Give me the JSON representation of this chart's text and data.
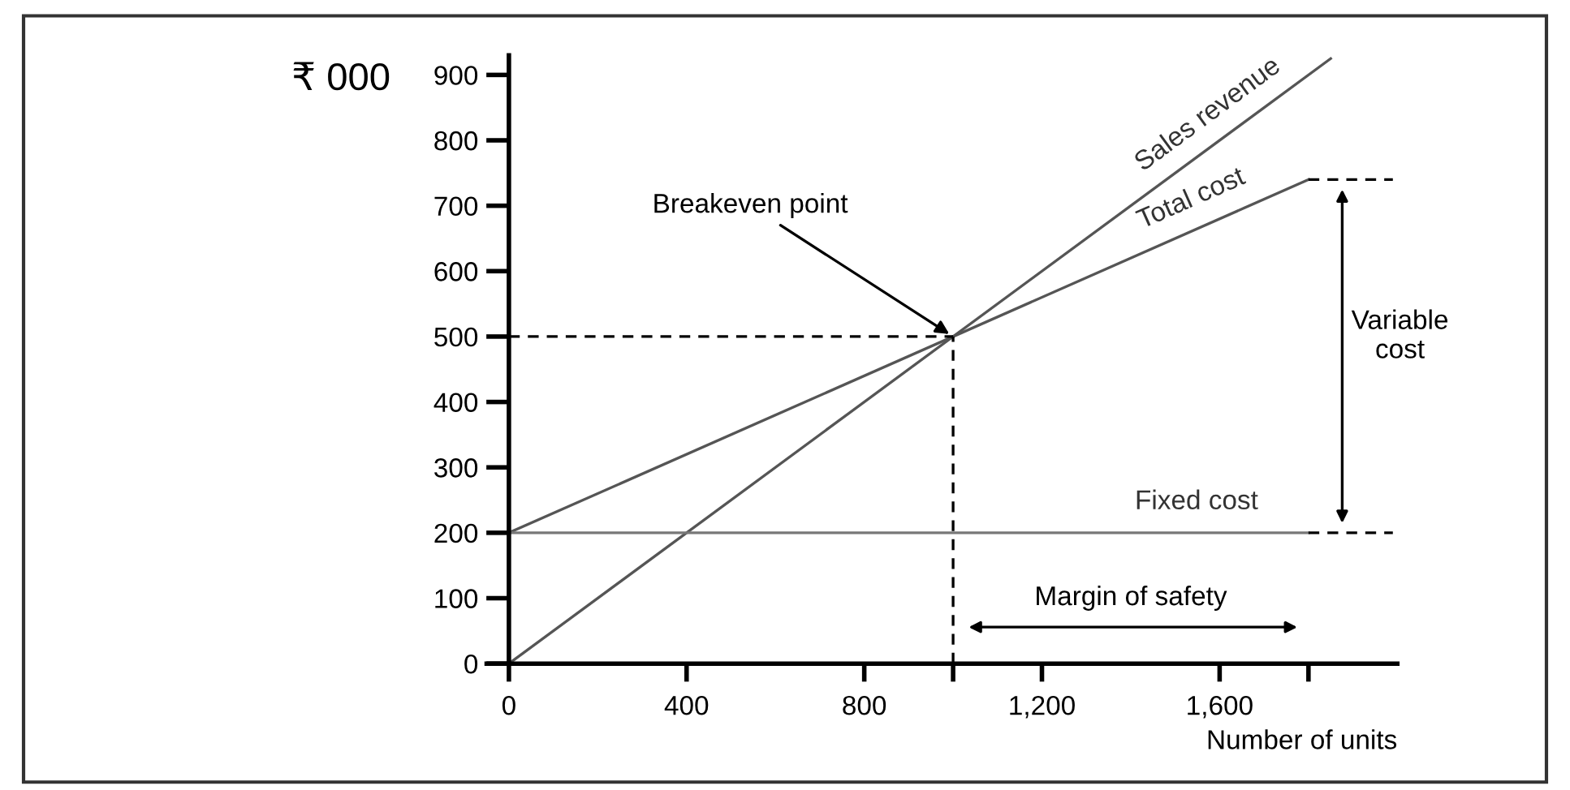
{
  "chart_data": {
    "type": "line",
    "ylabel": "₹ 000",
    "xlabel": "Number of units",
    "xlim": [
      -50,
      2000
    ],
    "ylim": [
      0,
      930
    ],
    "xticks": [
      0,
      400,
      800,
      {
        "value": 1000,
        "label": null
      },
      {
        "value": 1200,
        "label": "1,200"
      },
      {
        "value": 1600,
        "label": "1,600"
      },
      {
        "value": 1800,
        "label": null
      }
    ],
    "yticks": [
      0,
      100,
      200,
      300,
      400,
      500,
      600,
      700,
      800,
      900
    ],
    "grid": false,
    "legend": false,
    "marker": "none",
    "series": [
      {
        "name": "Sales revenue",
        "color": "#555555",
        "x": [
          0,
          1850
        ],
        "values": [
          0,
          925
        ],
        "line_style": "solid"
      },
      {
        "name": "Total cost",
        "color": "#555555",
        "x": [
          0,
          1800
        ],
        "values": [
          200,
          740
        ],
        "line_style": "solid"
      },
      {
        "name": "Fixed cost",
        "color": "#777777",
        "x": [
          0,
          1800
        ],
        "values": [
          200,
          200
        ],
        "line_style": "solid"
      },
      {
        "color": "#000000",
        "x": [
          0,
          1000
        ],
        "values": [
          500,
          500
        ],
        "line_style": "dashed"
      },
      {
        "color": "#000000",
        "x": [
          1000,
          1000
        ],
        "values": [
          0,
          500
        ],
        "line_style": "dashed"
      },
      {
        "color": "#000000",
        "x": [
          1800,
          1990
        ],
        "values": [
          740,
          740
        ],
        "line_style": "dashed"
      },
      {
        "color": "#000000",
        "x": [
          1800,
          1990
        ],
        "values": [
          200,
          200
        ],
        "line_style": "dashed"
      }
    ],
    "annotations": [
      {
        "text": "Breakeven point",
        "x": 1000,
        "y": 500
      },
      "Margin of safety",
      "Variable\ncost"
    ]
  }
}
